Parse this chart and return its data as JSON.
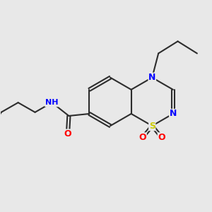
{
  "background_color": "#e8e8e8",
  "bond_color": "#2d2d2d",
  "atom_colors": {
    "N": "#0000ff",
    "S": "#cccc00",
    "O": "#ff0000",
    "C": "#2d2d2d",
    "H": "#2d2d2d"
  },
  "figsize": [
    3.0,
    3.0
  ],
  "dpi": 100
}
